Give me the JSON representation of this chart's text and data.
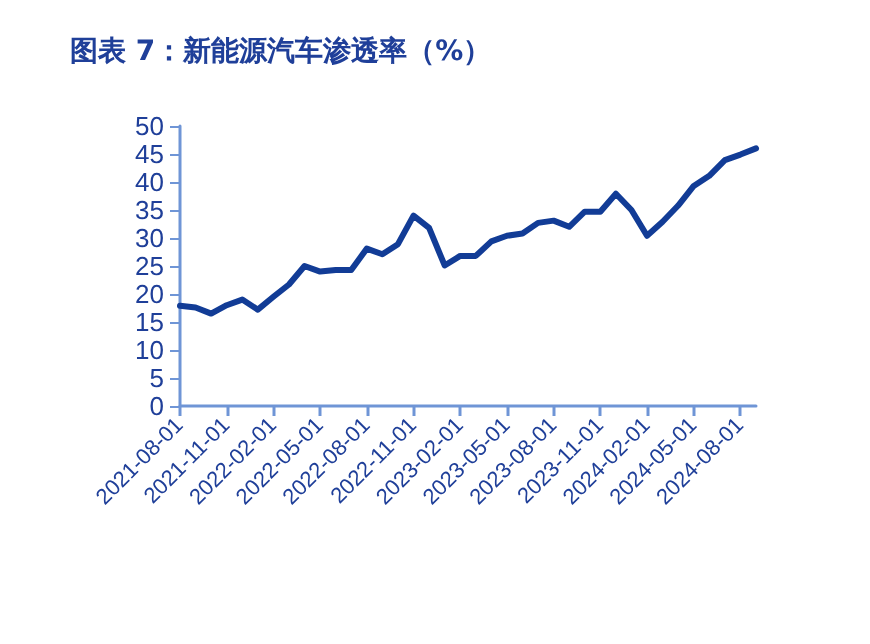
{
  "chart_data": {
    "type": "line",
    "title": "图表 7：新能源汽车渗透率（%）",
    "categories": [
      "2021-08-01",
      null,
      null,
      "2021-11-01",
      null,
      null,
      "2022-02-01",
      null,
      null,
      "2022-05-01",
      null,
      null,
      "2022-08-01",
      null,
      null,
      "2022-11-01",
      null,
      null,
      "2023-02-01",
      null,
      null,
      "2023-05-01",
      null,
      null,
      "2023-08-01",
      null,
      null,
      "2023-11-01",
      null,
      null,
      "2024-02-01",
      null,
      null,
      "2024-05-01",
      null,
      null,
      "2024-08-01",
      null
    ],
    "series": [
      {
        "color": "#123c96",
        "values": [
          17.9,
          17.6,
          16.5,
          18,
          19,
          17.2,
          19.5,
          21.7,
          25,
          24,
          24.3,
          24.3,
          28.1,
          27.1,
          28.9,
          34,
          31.8,
          25.1,
          26.8,
          26.8,
          29.4,
          30.4,
          30.8,
          32.7,
          33.1,
          32,
          34.7,
          34.7,
          37.9,
          35,
          30.4,
          32.9,
          35.8,
          39.3,
          41.1,
          43.9,
          44.9,
          46
        ]
      }
    ],
    "ylim": [
      0,
      50
    ],
    "yticks": [
      0,
      5,
      10,
      15,
      20,
      25,
      30,
      35,
      40,
      45,
      50
    ],
    "grid": false,
    "marker": "none",
    "line_style": "solid"
  }
}
